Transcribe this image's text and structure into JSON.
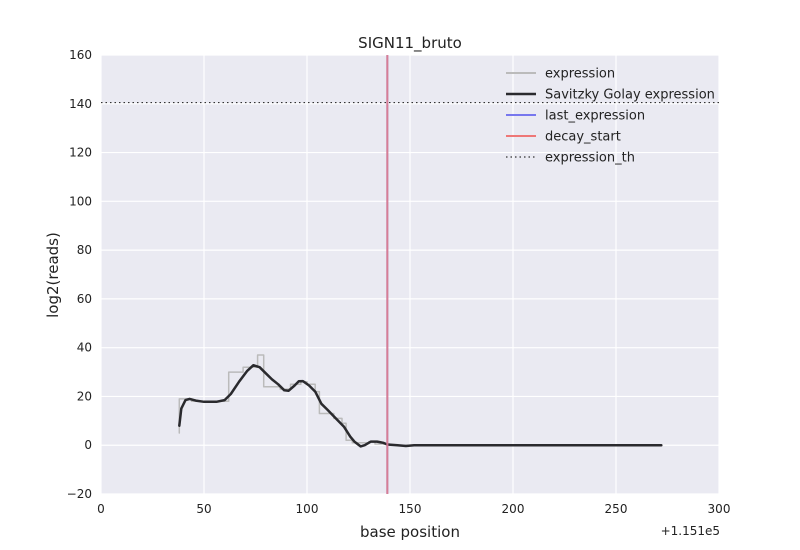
{
  "chart_data": {
    "type": "line",
    "title": "SIGN11_bruto",
    "xlabel": "base position",
    "ylabel": "log2(reads)",
    "x_offset_label": "+1.151e5",
    "xlim": [
      0,
      300
    ],
    "ylim": [
      -20,
      160
    ],
    "xticks": [
      0,
      50,
      100,
      150,
      200,
      250,
      300
    ],
    "yticks": [
      -20,
      0,
      20,
      40,
      60,
      80,
      100,
      120,
      140,
      160
    ],
    "grid": true,
    "legend_position": "top-right",
    "series": [
      {
        "name": "expression",
        "style": "line",
        "color": "#bbbbbb",
        "points": [
          [
            38,
            5
          ],
          [
            38,
            19
          ],
          [
            44,
            19
          ],
          [
            44,
            18
          ],
          [
            62,
            18
          ],
          [
            62,
            30
          ],
          [
            69,
            30
          ],
          [
            69,
            32
          ],
          [
            76,
            32
          ],
          [
            76,
            37
          ],
          [
            79,
            37
          ],
          [
            79,
            24
          ],
          [
            87,
            24
          ],
          [
            87,
            23
          ],
          [
            92,
            23
          ],
          [
            92,
            25
          ],
          [
            97,
            25
          ],
          [
            97,
            26
          ],
          [
            100,
            26
          ],
          [
            100,
            25
          ],
          [
            104,
            25
          ],
          [
            104,
            22
          ],
          [
            106,
            22
          ],
          [
            106,
            13
          ],
          [
            113,
            13
          ],
          [
            113,
            11
          ],
          [
            117,
            11
          ],
          [
            117,
            9
          ],
          [
            119,
            9
          ],
          [
            119,
            2
          ],
          [
            122,
            2
          ],
          [
            122,
            1
          ],
          [
            130,
            1
          ],
          [
            130,
            1.5
          ],
          [
            133,
            1.5
          ],
          [
            133,
            0.5
          ],
          [
            140,
            0.5
          ],
          [
            140,
            0
          ],
          [
            272,
            0
          ]
        ]
      },
      {
        "name": "Savitzky Golay expression",
        "style": "line",
        "color": "#2a2a2e",
        "points": [
          [
            38,
            8
          ],
          [
            39,
            15
          ],
          [
            41,
            18.5
          ],
          [
            43,
            19
          ],
          [
            46,
            18.3
          ],
          [
            50,
            17.8
          ],
          [
            56,
            17.8
          ],
          [
            60,
            18.5
          ],
          [
            63,
            21
          ],
          [
            67,
            26
          ],
          [
            71,
            30.5
          ],
          [
            74,
            32.8
          ],
          [
            77,
            32
          ],
          [
            80,
            29.5
          ],
          [
            83,
            27
          ],
          [
            86,
            25
          ],
          [
            89,
            22.5
          ],
          [
            91,
            22.3
          ],
          [
            94,
            24.5
          ],
          [
            96,
            26.2
          ],
          [
            98,
            26.3
          ],
          [
            101,
            24.5
          ],
          [
            104,
            22
          ],
          [
            107,
            17
          ],
          [
            110,
            14.5
          ],
          [
            114,
            11
          ],
          [
            118,
            7.5
          ],
          [
            121,
            3.5
          ],
          [
            123,
            1.5
          ],
          [
            126,
            -0.5
          ],
          [
            128,
            0
          ],
          [
            131,
            1.5
          ],
          [
            134,
            1.5
          ],
          [
            137,
            1
          ],
          [
            139,
            0.3
          ],
          [
            144,
            0
          ],
          [
            148,
            -0.3
          ],
          [
            152,
            0
          ],
          [
            160,
            0
          ],
          [
            272,
            0
          ]
        ]
      },
      {
        "name": "last_expression",
        "style": "vline",
        "color": "#7777ee",
        "x": 139
      },
      {
        "name": "decay_start",
        "style": "vline",
        "color": "#ee7777",
        "x": 139
      },
      {
        "name": "expression_th",
        "style": "hline",
        "color": "#333333",
        "y": 140.5
      }
    ]
  }
}
